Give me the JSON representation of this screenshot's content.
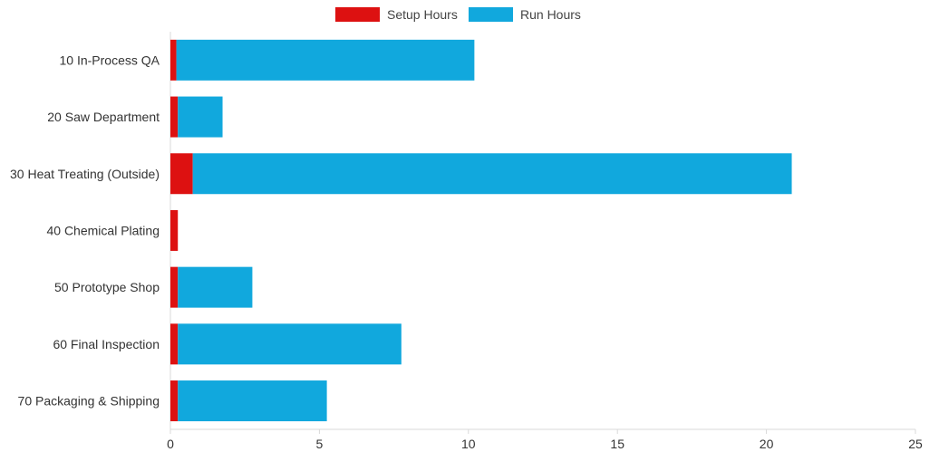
{
  "chart_data": {
    "type": "bar",
    "orientation": "horizontal",
    "stacked": true,
    "categories": [
      "10 In-Process QA",
      "20 Saw Department",
      "30 Heat Treating (Outside)",
      "40 Chemical Plating",
      "50 Prototype Shop",
      "60 Final Inspection",
      "70 Packaging & Shipping"
    ],
    "series": [
      {
        "name": "Setup Hours",
        "color": "#dd1111",
        "values": [
          0.2,
          0.25,
          0.75,
          0.25,
          0.25,
          0.25,
          0.25
        ]
      },
      {
        "name": "Run Hours",
        "color": "#11a8dd",
        "values": [
          10.0,
          1.5,
          20.1,
          0.0,
          2.5,
          7.5,
          5.0
        ]
      }
    ],
    "xlim": [
      0,
      25
    ],
    "xticks": [
      "0",
      "5",
      "10",
      "15",
      "20",
      "25"
    ],
    "legend_position": "top",
    "grid": false,
    "title": "",
    "xlabel": "",
    "ylabel": ""
  }
}
